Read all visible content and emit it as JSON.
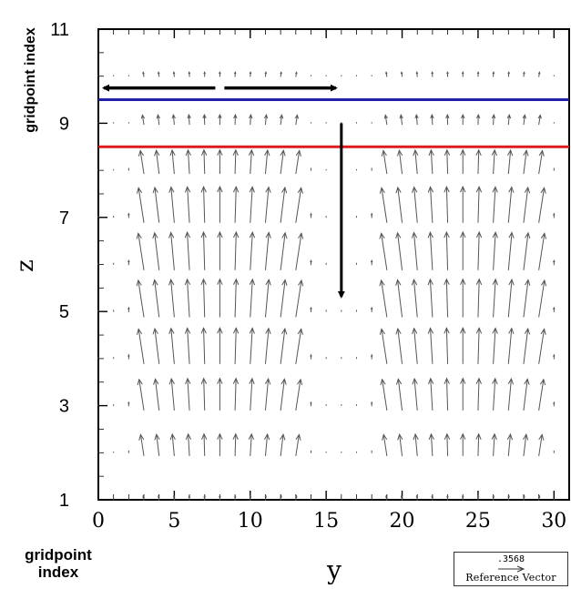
{
  "chart_data": {
    "type": "quiver",
    "xlabel": "y",
    "ylabel": "z",
    "xlim": [
      0,
      31
    ],
    "ylim": [
      1,
      11
    ],
    "x_ticks": [
      0,
      5,
      10,
      15,
      20,
      25,
      30
    ],
    "y_ticks": [
      1,
      3,
      5,
      7,
      9,
      11
    ],
    "x_tick_labels": [
      "0",
      "5",
      "10",
      "15",
      "20",
      "25",
      "30"
    ],
    "y_tick_labels": [
      "1",
      "3",
      "5",
      "7",
      "9",
      "11"
    ],
    "x_grid": [
      0,
      1,
      2,
      3,
      4,
      5,
      6,
      7,
      8,
      9,
      10,
      11,
      12,
      13,
      14,
      15,
      16,
      17,
      18,
      19,
      20,
      21,
      22,
      23,
      24,
      25,
      26,
      27,
      28,
      29,
      30
    ],
    "y_grid": [
      1,
      2,
      3,
      4,
      5,
      6,
      7,
      8,
      9,
      10
    ],
    "vector_profile_by_row": {
      "1": 0.12,
      "2": 0.55,
      "3": 0.8,
      "4": 0.9,
      "5": 0.95,
      "6": 0.95,
      "7": 0.9,
      "8": 0.6,
      "9": 0.25,
      "10": 0.12
    },
    "vector_description": "upward vectors over y=3-13 and y=19-29, small near y=0-2, 14-18, 30",
    "reference_vector": {
      "value": ".3568",
      "label": "Reference Vector"
    },
    "overlays": {
      "blue_line_z": 9.5,
      "red_line_z": 8.5,
      "horizontal_arrows": [
        {
          "from_x": 8,
          "to_x": 0,
          "z": 9.75
        },
        {
          "from_x": 8,
          "to_x": 16,
          "z": 9.75
        }
      ],
      "vertical_arrow": {
        "x": 16,
        "from_z": 9.0,
        "to_z": 5.2
      },
      "colors": {
        "blue": "#2020a8",
        "red": "#e01a1a",
        "arrow": "#000000",
        "vector": "#555555"
      }
    },
    "grid": false
  },
  "labels": {
    "y_axis_top": "gridpoint index",
    "x_axis_bottom": "gridpoint\nindex",
    "ref_value": ".3568",
    "ref_text": "Reference Vector"
  }
}
